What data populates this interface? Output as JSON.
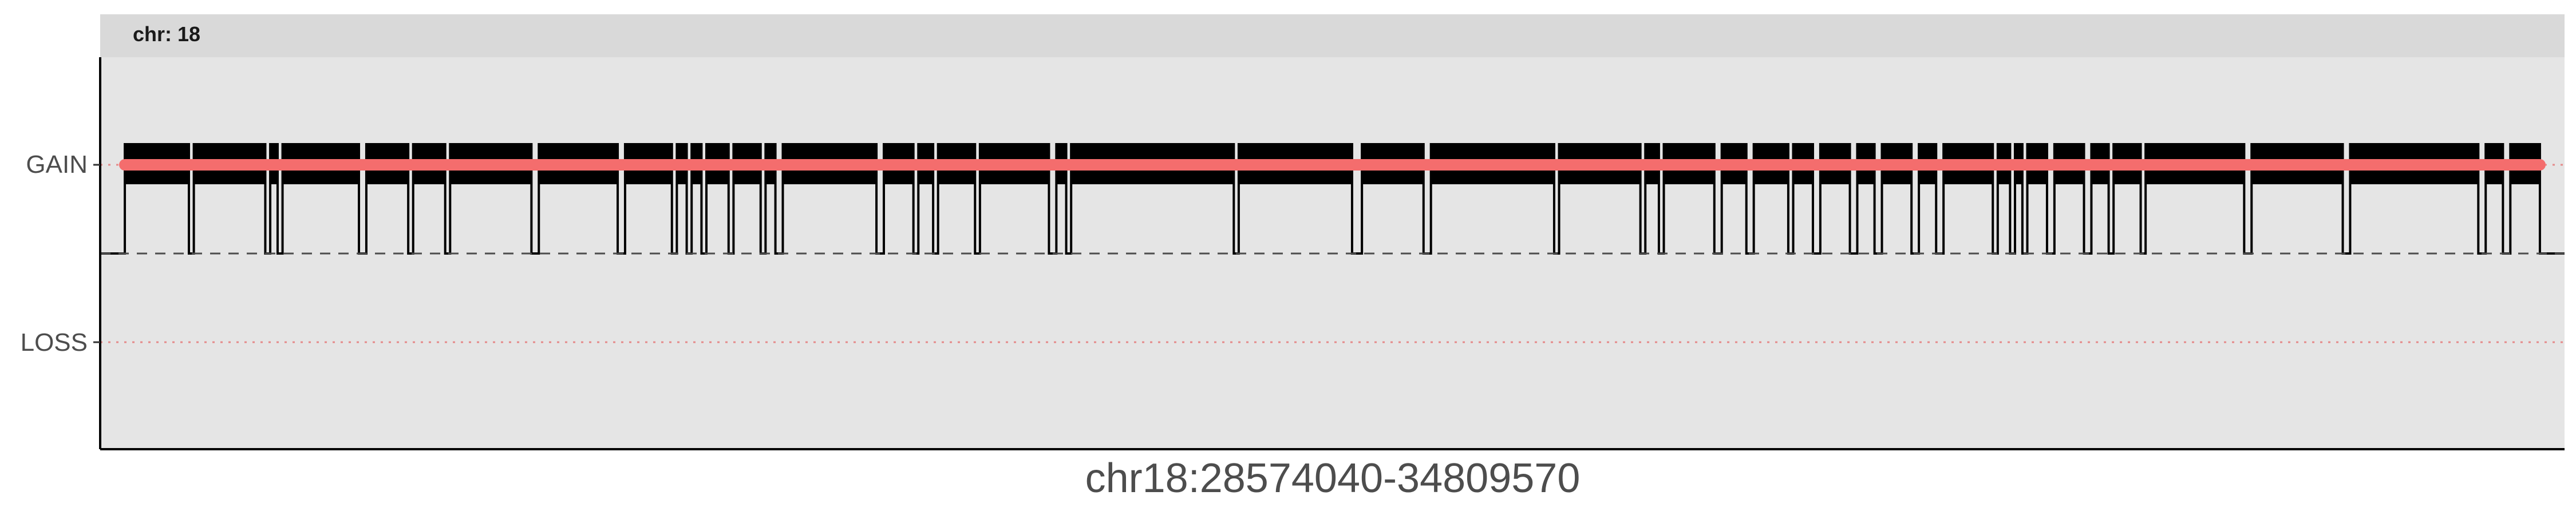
{
  "chart_data": {
    "type": "line",
    "facet_label": "chr: 18",
    "xlabel": "chr18:28574040-34809570",
    "ylabel": "",
    "y_categories": [
      "LOSS",
      "NEUTRAL",
      "GAIN"
    ],
    "y_tick_labels": [
      "GAIN",
      "LOSS"
    ],
    "grid": false,
    "colors": {
      "panel_bg": "#e5e5e5",
      "strip_bg": "#d9d9d9",
      "segment_line": "#f46d6d",
      "step_line": "#000000",
      "baseline_dash": "#4d4d4d",
      "loss_dotted": "#e58a8a"
    },
    "series": [
      {
        "type": "segment",
        "state": "GAIN",
        "x_range_fraction": [
          0.01,
          0.99
        ]
      }
    ],
    "gain_blocks_fraction": [
      [
        0.01,
        0.036
      ],
      [
        0.038,
        0.067
      ],
      [
        0.069,
        0.072
      ],
      [
        0.074,
        0.105
      ],
      [
        0.108,
        0.125
      ],
      [
        0.127,
        0.14
      ],
      [
        0.142,
        0.175
      ],
      [
        0.178,
        0.21
      ],
      [
        0.213,
        0.232
      ],
      [
        0.234,
        0.238
      ],
      [
        0.24,
        0.244
      ],
      [
        0.246,
        0.255
      ],
      [
        0.257,
        0.268
      ],
      [
        0.27,
        0.274
      ],
      [
        0.277,
        0.315
      ],
      [
        0.318,
        0.33
      ],
      [
        0.332,
        0.338
      ],
      [
        0.34,
        0.355
      ],
      [
        0.357,
        0.385
      ],
      [
        0.388,
        0.392
      ],
      [
        0.394,
        0.46
      ],
      [
        0.462,
        0.508
      ],
      [
        0.512,
        0.537
      ],
      [
        0.54,
        0.59
      ],
      [
        0.592,
        0.625
      ],
      [
        0.627,
        0.6325
      ],
      [
        0.6345,
        0.655
      ],
      [
        0.658,
        0.668
      ],
      [
        0.671,
        0.685
      ],
      [
        0.687,
        0.695
      ],
      [
        0.698,
        0.71
      ],
      [
        0.713,
        0.72
      ],
      [
        0.723,
        0.735
      ],
      [
        0.738,
        0.745
      ],
      [
        0.748,
        0.768
      ],
      [
        0.77,
        0.775
      ],
      [
        0.777,
        0.78
      ],
      [
        0.782,
        0.79
      ],
      [
        0.793,
        0.805
      ],
      [
        0.808,
        0.815
      ],
      [
        0.817,
        0.828
      ],
      [
        0.83,
        0.87
      ],
      [
        0.873,
        0.91
      ],
      [
        0.913,
        0.965
      ],
      [
        0.968,
        0.975
      ],
      [
        0.978,
        0.99
      ]
    ]
  }
}
